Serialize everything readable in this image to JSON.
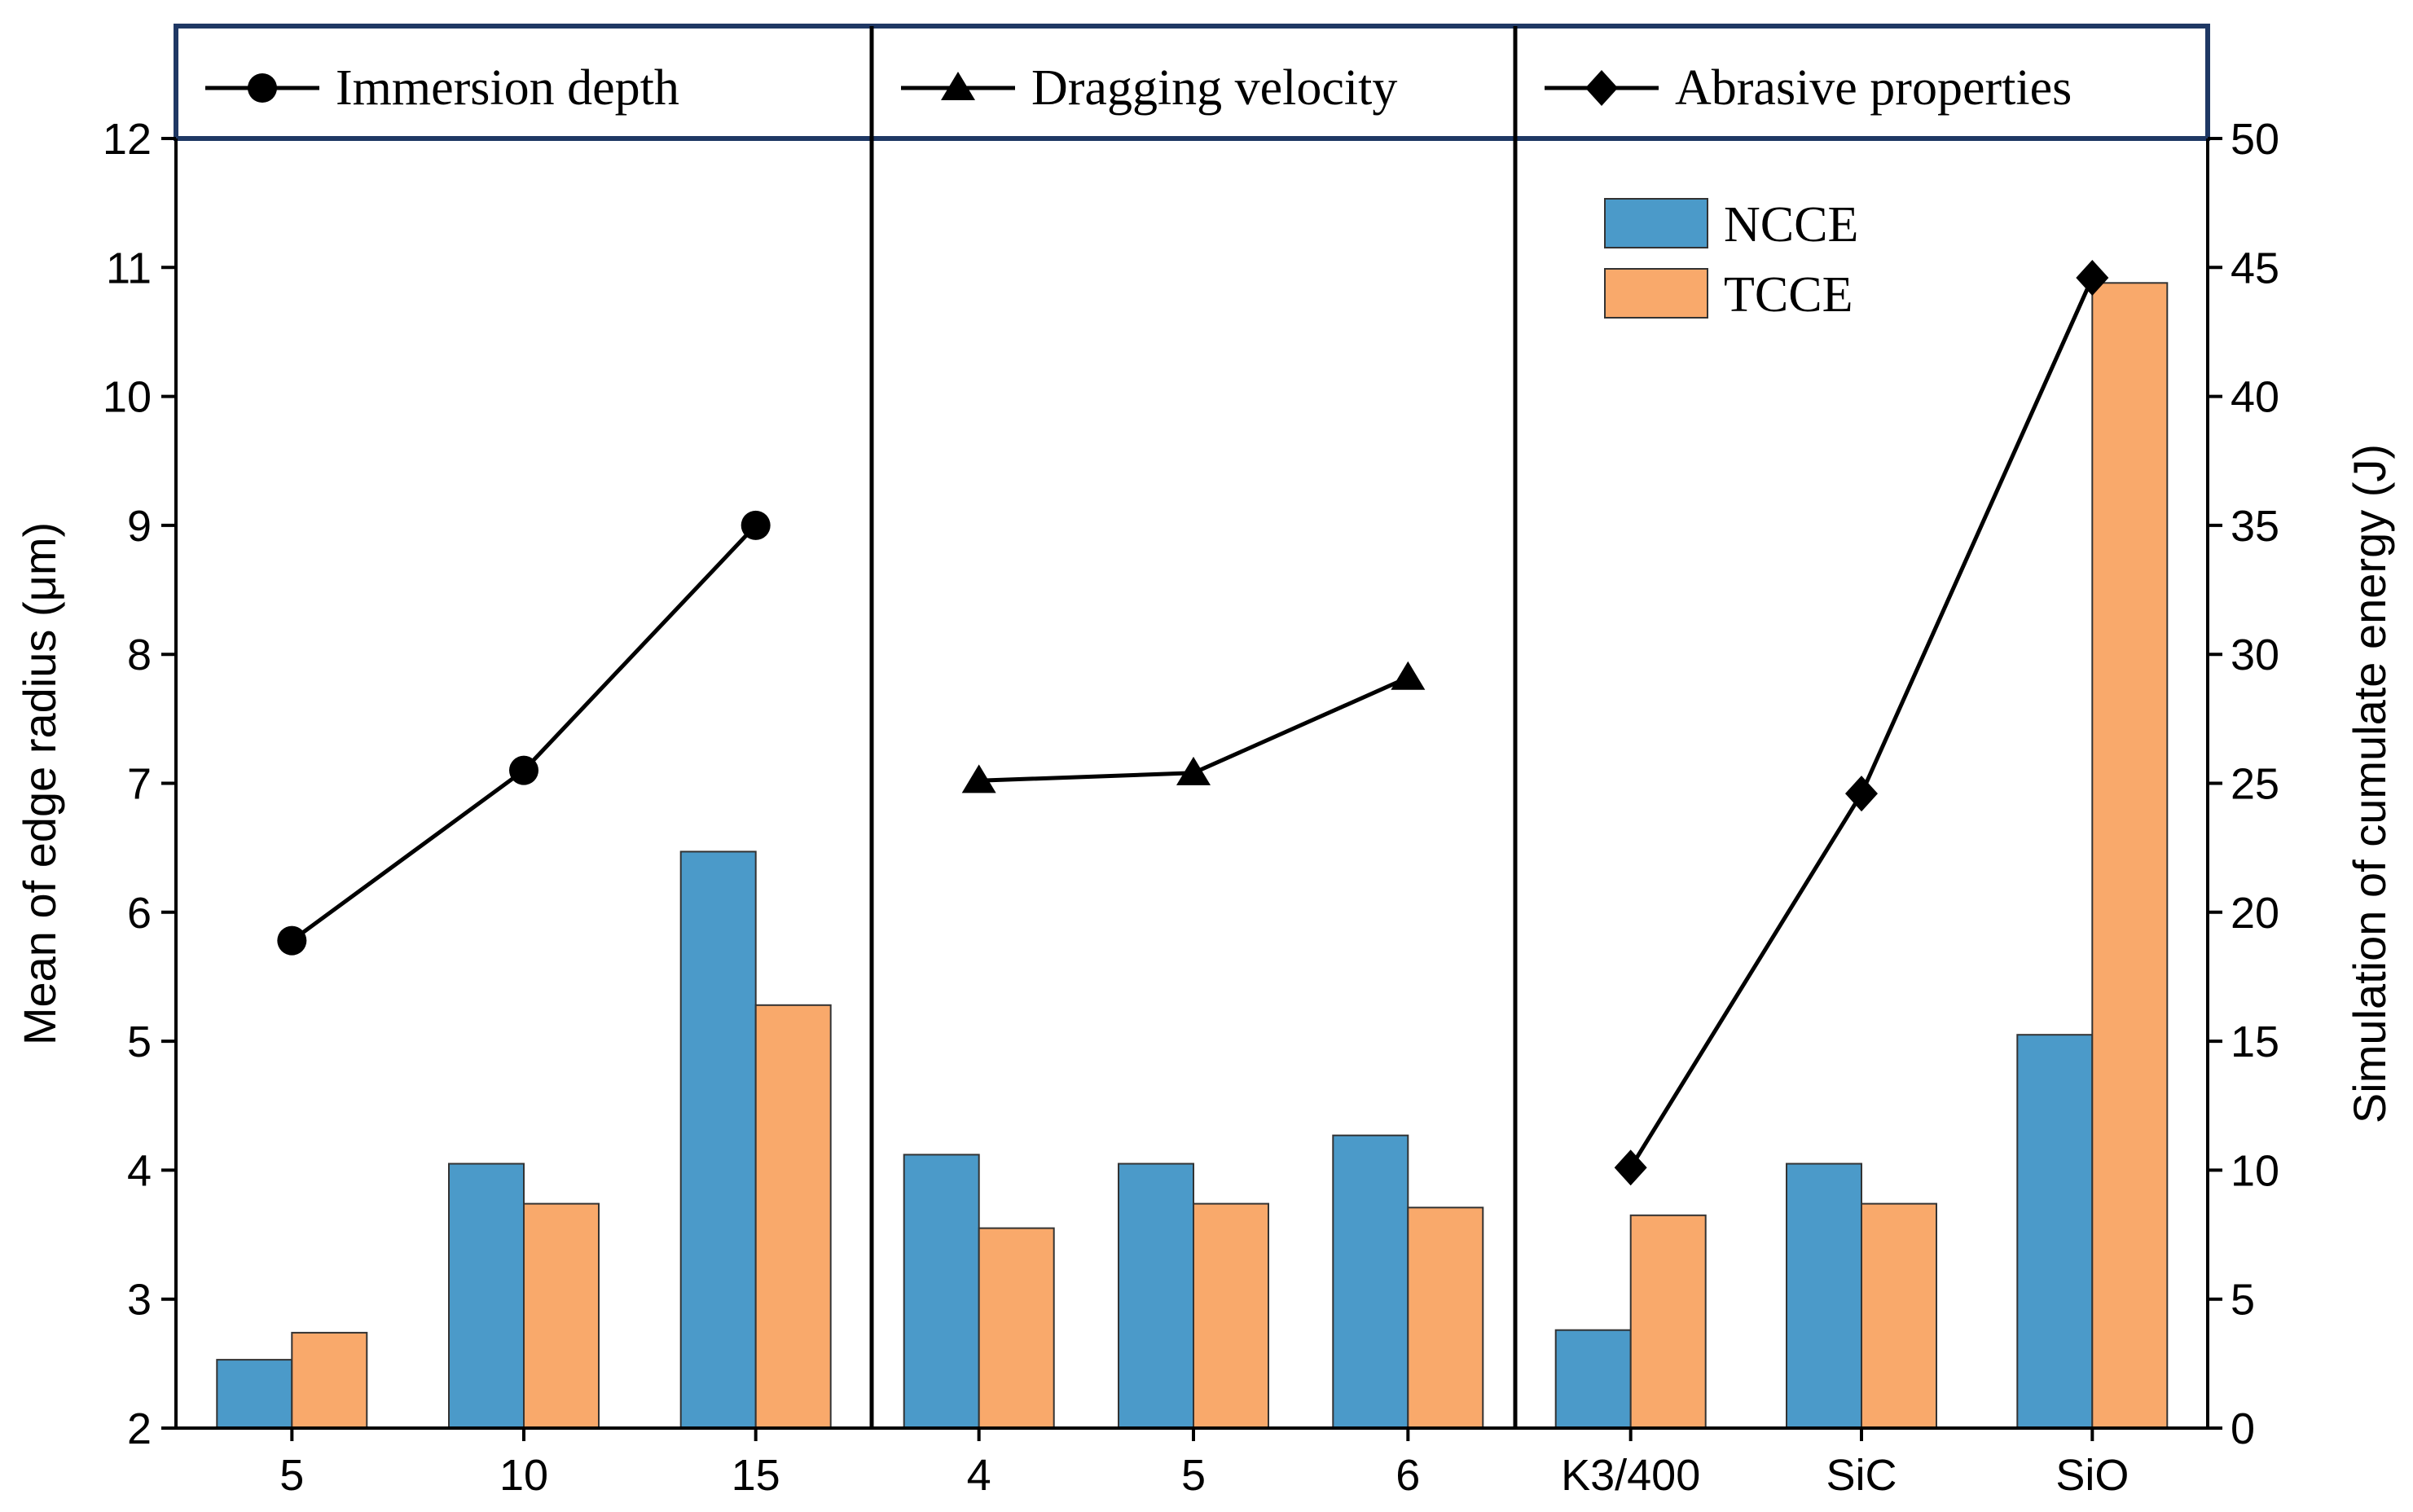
{
  "chart_data": {
    "type": "bar",
    "groups": [
      {
        "name": "Immersion depth",
        "marker": "circle",
        "categories": [
          "5",
          "10",
          "15"
        ]
      },
      {
        "name": "Dragging velocity",
        "marker": "triangle",
        "categories": [
          "4",
          "5",
          "6"
        ]
      },
      {
        "name": "Abrasive properties",
        "marker": "diamond",
        "categories": [
          "K3/400",
          "SiC",
          "SiO"
        ]
      }
    ],
    "categories": [
      "5",
      "10",
      "15",
      "4",
      "5",
      "6",
      "K3/400",
      "SiC",
      "SiO"
    ],
    "series": [
      {
        "name": "NCCE",
        "axis": "left",
        "color": "#4b9ac9",
        "values": [
          2.53,
          4.05,
          6.47,
          4.12,
          4.05,
          4.27,
          2.76,
          4.05,
          5.05
        ]
      },
      {
        "name": "TCCE",
        "axis": "left",
        "color": "#f9a96b",
        "values": [
          2.74,
          3.74,
          5.28,
          3.55,
          3.74,
          3.71,
          3.65,
          3.74,
          10.88
        ]
      }
    ],
    "line_series": {
      "name": "Simulation of cumulate energy",
      "axis": "right",
      "values": [
        18.9,
        25.5,
        35.0,
        25.1,
        25.4,
        29.1,
        10.1,
        24.6,
        44.6
      ]
    },
    "ylabel": "Mean of edge radius (μm)",
    "y2label": "Simulation of  cumulate energy (J)",
    "xlabel": "",
    "ylim": [
      2,
      12
    ],
    "y2lim": [
      0,
      50
    ],
    "yticks": [
      "2",
      "3",
      "4",
      "5",
      "6",
      "7",
      "8",
      "9",
      "10",
      "11",
      "12"
    ],
    "y2ticks": [
      "0",
      "5",
      "10",
      "15",
      "20",
      "25",
      "30",
      "35",
      "40",
      "45",
      "50"
    ],
    "legend": [
      "NCCE",
      "TCCE"
    ],
    "legend_position": "top-right",
    "grid": false,
    "colors": {
      "axis": "#000000",
      "header_border": "#1f3864",
      "line": "#000000"
    }
  }
}
